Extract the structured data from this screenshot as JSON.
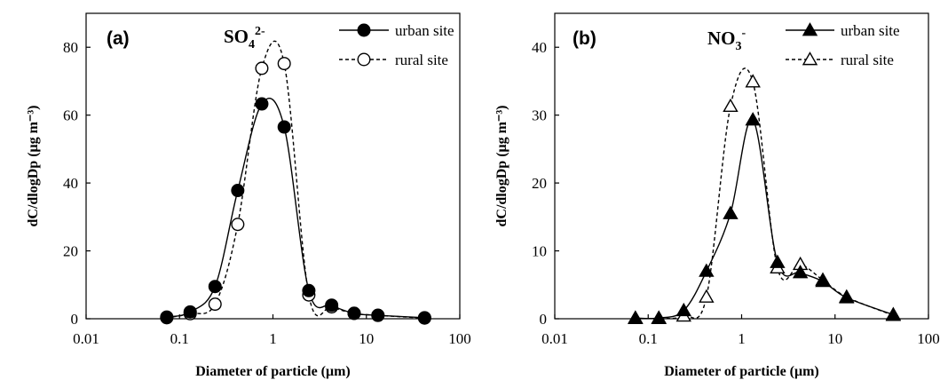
{
  "chart_data": [
    {
      "type": "line",
      "panel_label": "(a)",
      "ion_label": {
        "base": "SO",
        "sub": "4",
        "sup": "2-"
      },
      "xlabel": "Diameter of particle (μm)",
      "ylabel": "dC/dlogDp (μg m⁻³)",
      "x_scale": "log",
      "xlim": [
        0.01,
        100
      ],
      "ylim": [
        0,
        90
      ],
      "x_ticks": [
        0.01,
        0.1,
        1,
        10,
        100
      ],
      "x_tick_labels": [
        "0.01",
        "0.1",
        "1",
        "10",
        "100"
      ],
      "y_ticks": [
        0,
        20,
        40,
        60,
        80
      ],
      "y_tick_labels": [
        "0",
        "20",
        "40",
        "60",
        "80"
      ],
      "legend_position": "top-right",
      "grid": false,
      "series": [
        {
          "name": "urban site",
          "marker": "filled-circle",
          "line": "solid",
          "x": [
            0.073,
            0.13,
            0.24,
            0.42,
            0.76,
            1.32,
            2.42,
            4.25,
            7.4,
            13.3,
            42.0
          ],
          "y": [
            0.5,
            2.0,
            9.5,
            37.8,
            63.3,
            56.5,
            8.3,
            4.0,
            1.6,
            1.0,
            0.3
          ]
        },
        {
          "name": "rural site",
          "marker": "open-circle",
          "line": "dashed",
          "x": [
            0.073,
            0.13,
            0.24,
            0.42,
            0.76,
            1.32,
            2.42,
            4.25,
            7.4,
            13.3,
            42.0
          ],
          "y": [
            0.3,
            1.5,
            4.3,
            27.8,
            73.8,
            75.2,
            7.0,
            3.5,
            1.6,
            1.0,
            0.2
          ]
        }
      ]
    },
    {
      "type": "line",
      "panel_label": "(b)",
      "ion_label": {
        "base": "NO",
        "sub": "3",
        "sup": "-"
      },
      "xlabel": "Diameter of particle (μm)",
      "ylabel": "dC/dlogDp (μg m⁻³)",
      "x_scale": "log",
      "xlim": [
        0.01,
        100
      ],
      "ylim": [
        0,
        45
      ],
      "x_ticks": [
        0.01,
        0.1,
        1,
        10,
        100
      ],
      "x_tick_labels": [
        "0.01",
        "0.1",
        "1",
        "10",
        "100"
      ],
      "y_ticks": [
        0,
        10,
        20,
        30,
        40
      ],
      "y_tick_labels": [
        "0",
        "10",
        "20",
        "30",
        "40"
      ],
      "legend_position": "top-right",
      "grid": false,
      "series": [
        {
          "name": "urban site",
          "marker": "filled-triangle",
          "line": "solid",
          "x": [
            0.073,
            0.13,
            0.24,
            0.42,
            0.76,
            1.32,
            2.42,
            4.25,
            7.4,
            13.3,
            42.0
          ],
          "y": [
            0.1,
            0.1,
            1.2,
            7.0,
            15.5,
            29.3,
            8.3,
            6.8,
            5.5,
            3.1,
            0.6
          ]
        },
        {
          "name": "rural site",
          "marker": "open-triangle",
          "line": "dashed",
          "x": [
            0.073,
            0.13,
            0.24,
            0.42,
            0.76,
            1.32,
            2.42,
            4.25,
            7.4,
            13.3,
            42.0
          ],
          "y": [
            0.05,
            0.05,
            0.4,
            3.2,
            31.3,
            34.9,
            7.5,
            8.0,
            5.7,
            3.2,
            0.5
          ]
        }
      ]
    }
  ]
}
